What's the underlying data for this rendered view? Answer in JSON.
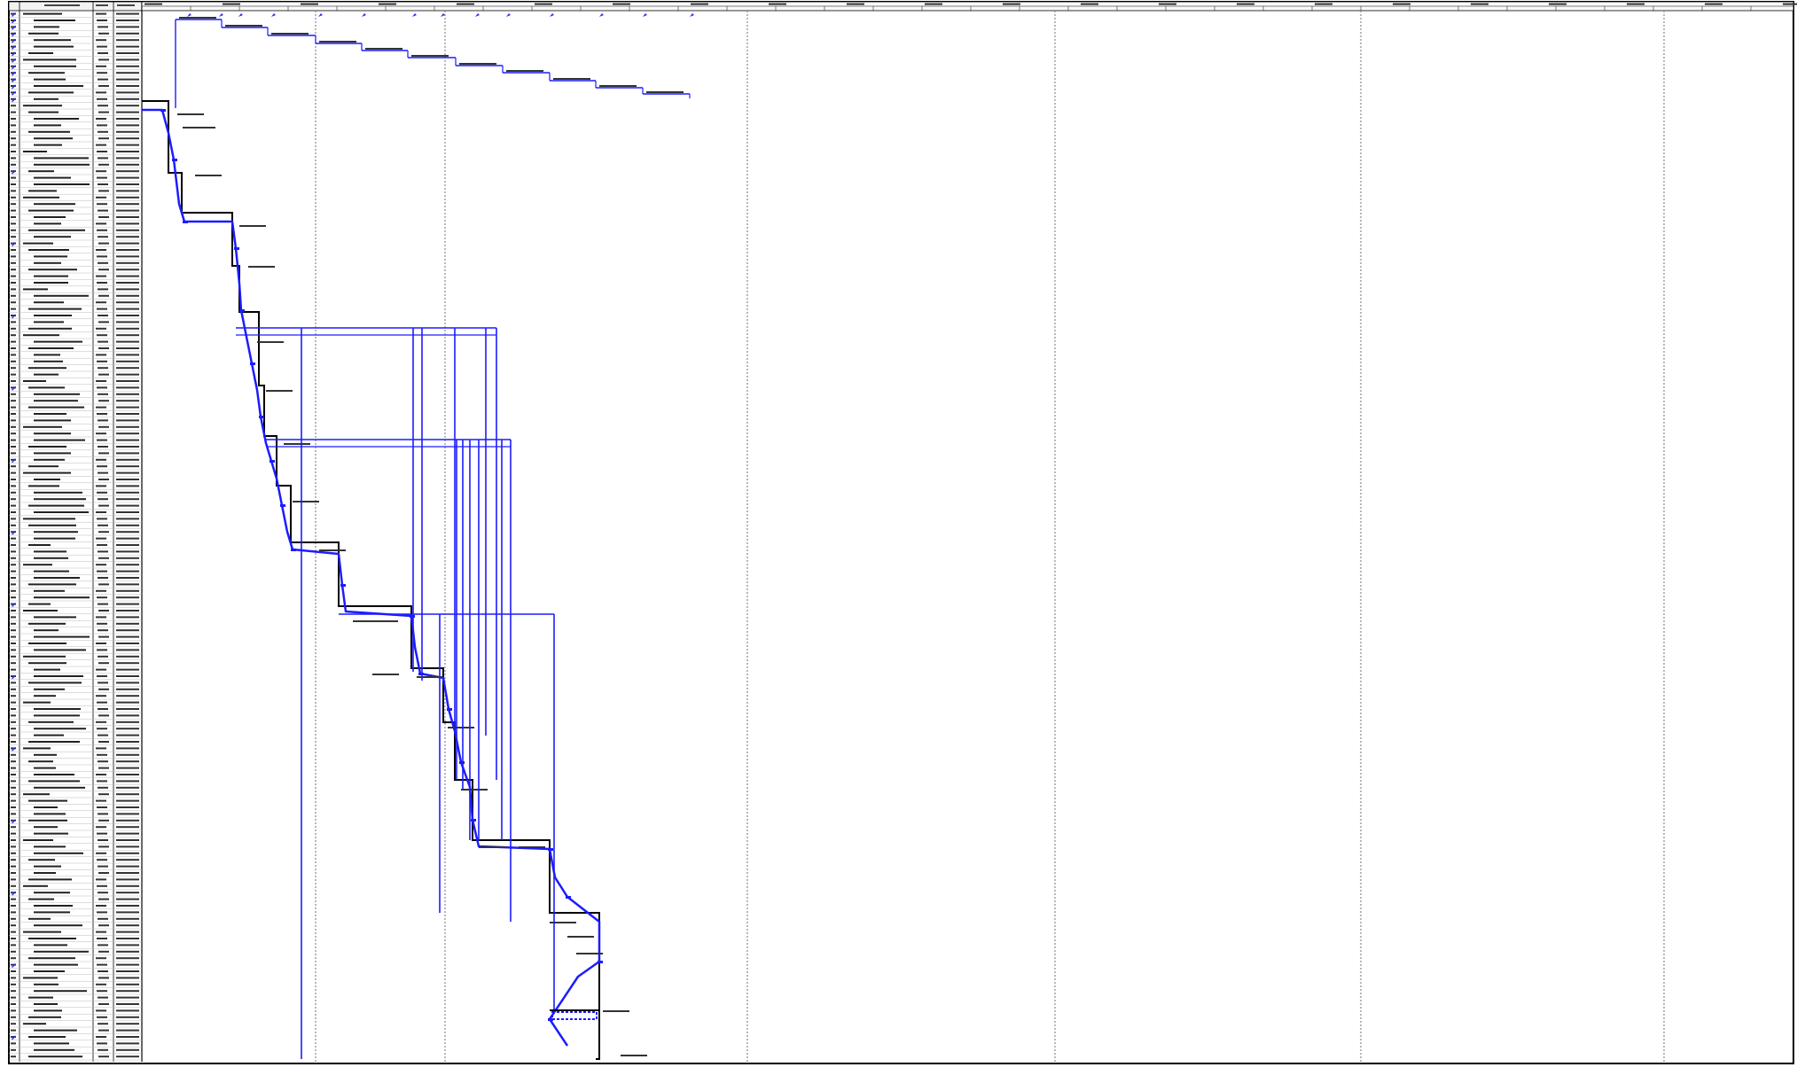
{
  "colors": {
    "link_blue": "#1c1cff",
    "summary_black": "#000000",
    "grid_grey": "#8a8a8a",
    "milestone_blue": "#2a32e8",
    "row_line": "#bbbbbb"
  },
  "table": {
    "columns": [
      "",
      "",
      "",
      ""
    ],
    "row_count": 160
  },
  "timescale": {
    "label_count": 22
  }
}
